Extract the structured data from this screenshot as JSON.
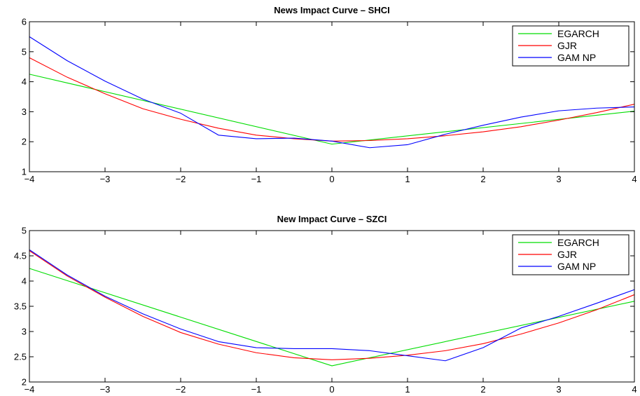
{
  "chart_data": [
    {
      "type": "line",
      "title": "News Impact Curve – SHCI",
      "xlabel": "",
      "ylabel": "",
      "xlim": [
        -4,
        4
      ],
      "ylim": [
        1,
        6
      ],
      "xticks": [
        -4,
        -3,
        -2,
        -1,
        0,
        1,
        2,
        3,
        4
      ],
      "yticks": [
        1,
        2,
        3,
        4,
        5,
        6
      ],
      "xtick_labels": [
        "−4",
        "−3",
        "−2",
        "−1",
        "0",
        "1",
        "2",
        "3",
        "4"
      ],
      "ytick_labels": [
        "1",
        "2",
        "3",
        "4",
        "5",
        "6"
      ],
      "legend_position": "top-right",
      "grid": false,
      "series": [
        {
          "name": "EGARCH",
          "color": "#00dd00",
          "x": [
            -4,
            0,
            4
          ],
          "y": [
            4.25,
            1.92,
            3.02
          ]
        },
        {
          "name": "GJR",
          "color": "#ff0000",
          "x": [
            -4,
            -3.5,
            -3,
            -2.5,
            -2,
            -1.5,
            -1,
            -0.5,
            0,
            0.5,
            1,
            1.5,
            2,
            2.5,
            3,
            3.5,
            4
          ],
          "y": [
            4.8,
            4.15,
            3.6,
            3.1,
            2.75,
            2.45,
            2.22,
            2.1,
            2.02,
            2.04,
            2.1,
            2.2,
            2.33,
            2.5,
            2.72,
            2.97,
            3.25
          ]
        },
        {
          "name": "GAM NP",
          "color": "#0000ff",
          "x": [
            -4,
            -3.5,
            -3,
            -2.5,
            -2,
            -1.5,
            -1,
            -0.5,
            0,
            0.5,
            1,
            1.5,
            2,
            2.5,
            3,
            3.5,
            4
          ],
          "y": [
            5.5,
            4.7,
            4.02,
            3.42,
            2.95,
            2.22,
            2.1,
            2.12,
            2.02,
            1.8,
            1.9,
            2.25,
            2.55,
            2.82,
            3.03,
            3.12,
            3.16
          ]
        }
      ]
    },
    {
      "type": "line",
      "title": "New Impact Curve – SZCI",
      "xlabel": "",
      "ylabel": "",
      "xlim": [
        -4,
        4
      ],
      "ylim": [
        2,
        5
      ],
      "xticks": [
        -4,
        -3,
        -2,
        -1,
        0,
        1,
        2,
        3,
        4
      ],
      "yticks": [
        2,
        2.5,
        3,
        3.5,
        4,
        4.5,
        5
      ],
      "xtick_labels": [
        "−4",
        "−3",
        "−2",
        "−1",
        "0",
        "1",
        "2",
        "3",
        "4"
      ],
      "ytick_labels": [
        "2",
        "2.5",
        "3",
        "3.5",
        "4",
        "4.5",
        "5"
      ],
      "legend_position": "top-right",
      "grid": false,
      "series": [
        {
          "name": "EGARCH",
          "color": "#00dd00",
          "x": [
            -4,
            0,
            4
          ],
          "y": [
            4.25,
            2.32,
            3.6
          ]
        },
        {
          "name": "GJR",
          "color": "#ff0000",
          "x": [
            -4,
            -3.5,
            -3,
            -2.5,
            -2,
            -1.5,
            -1,
            -0.5,
            0,
            0.5,
            1,
            1.5,
            2,
            2.5,
            3,
            3.5,
            4
          ],
          "y": [
            4.6,
            4.1,
            3.68,
            3.3,
            2.98,
            2.75,
            2.58,
            2.48,
            2.44,
            2.47,
            2.53,
            2.62,
            2.76,
            2.95,
            3.17,
            3.43,
            3.73
          ]
        },
        {
          "name": "GAM NP",
          "color": "#0000ff",
          "x": [
            -4,
            -3.5,
            -3,
            -2.5,
            -2,
            -1.5,
            -1,
            -0.5,
            0,
            0.5,
            1,
            1.5,
            2,
            2.5,
            3,
            3.5,
            4
          ],
          "y": [
            4.62,
            4.12,
            3.7,
            3.35,
            3.05,
            2.8,
            2.68,
            2.66,
            2.66,
            2.62,
            2.52,
            2.42,
            2.68,
            3.07,
            3.3,
            3.56,
            3.83
          ]
        }
      ]
    }
  ]
}
